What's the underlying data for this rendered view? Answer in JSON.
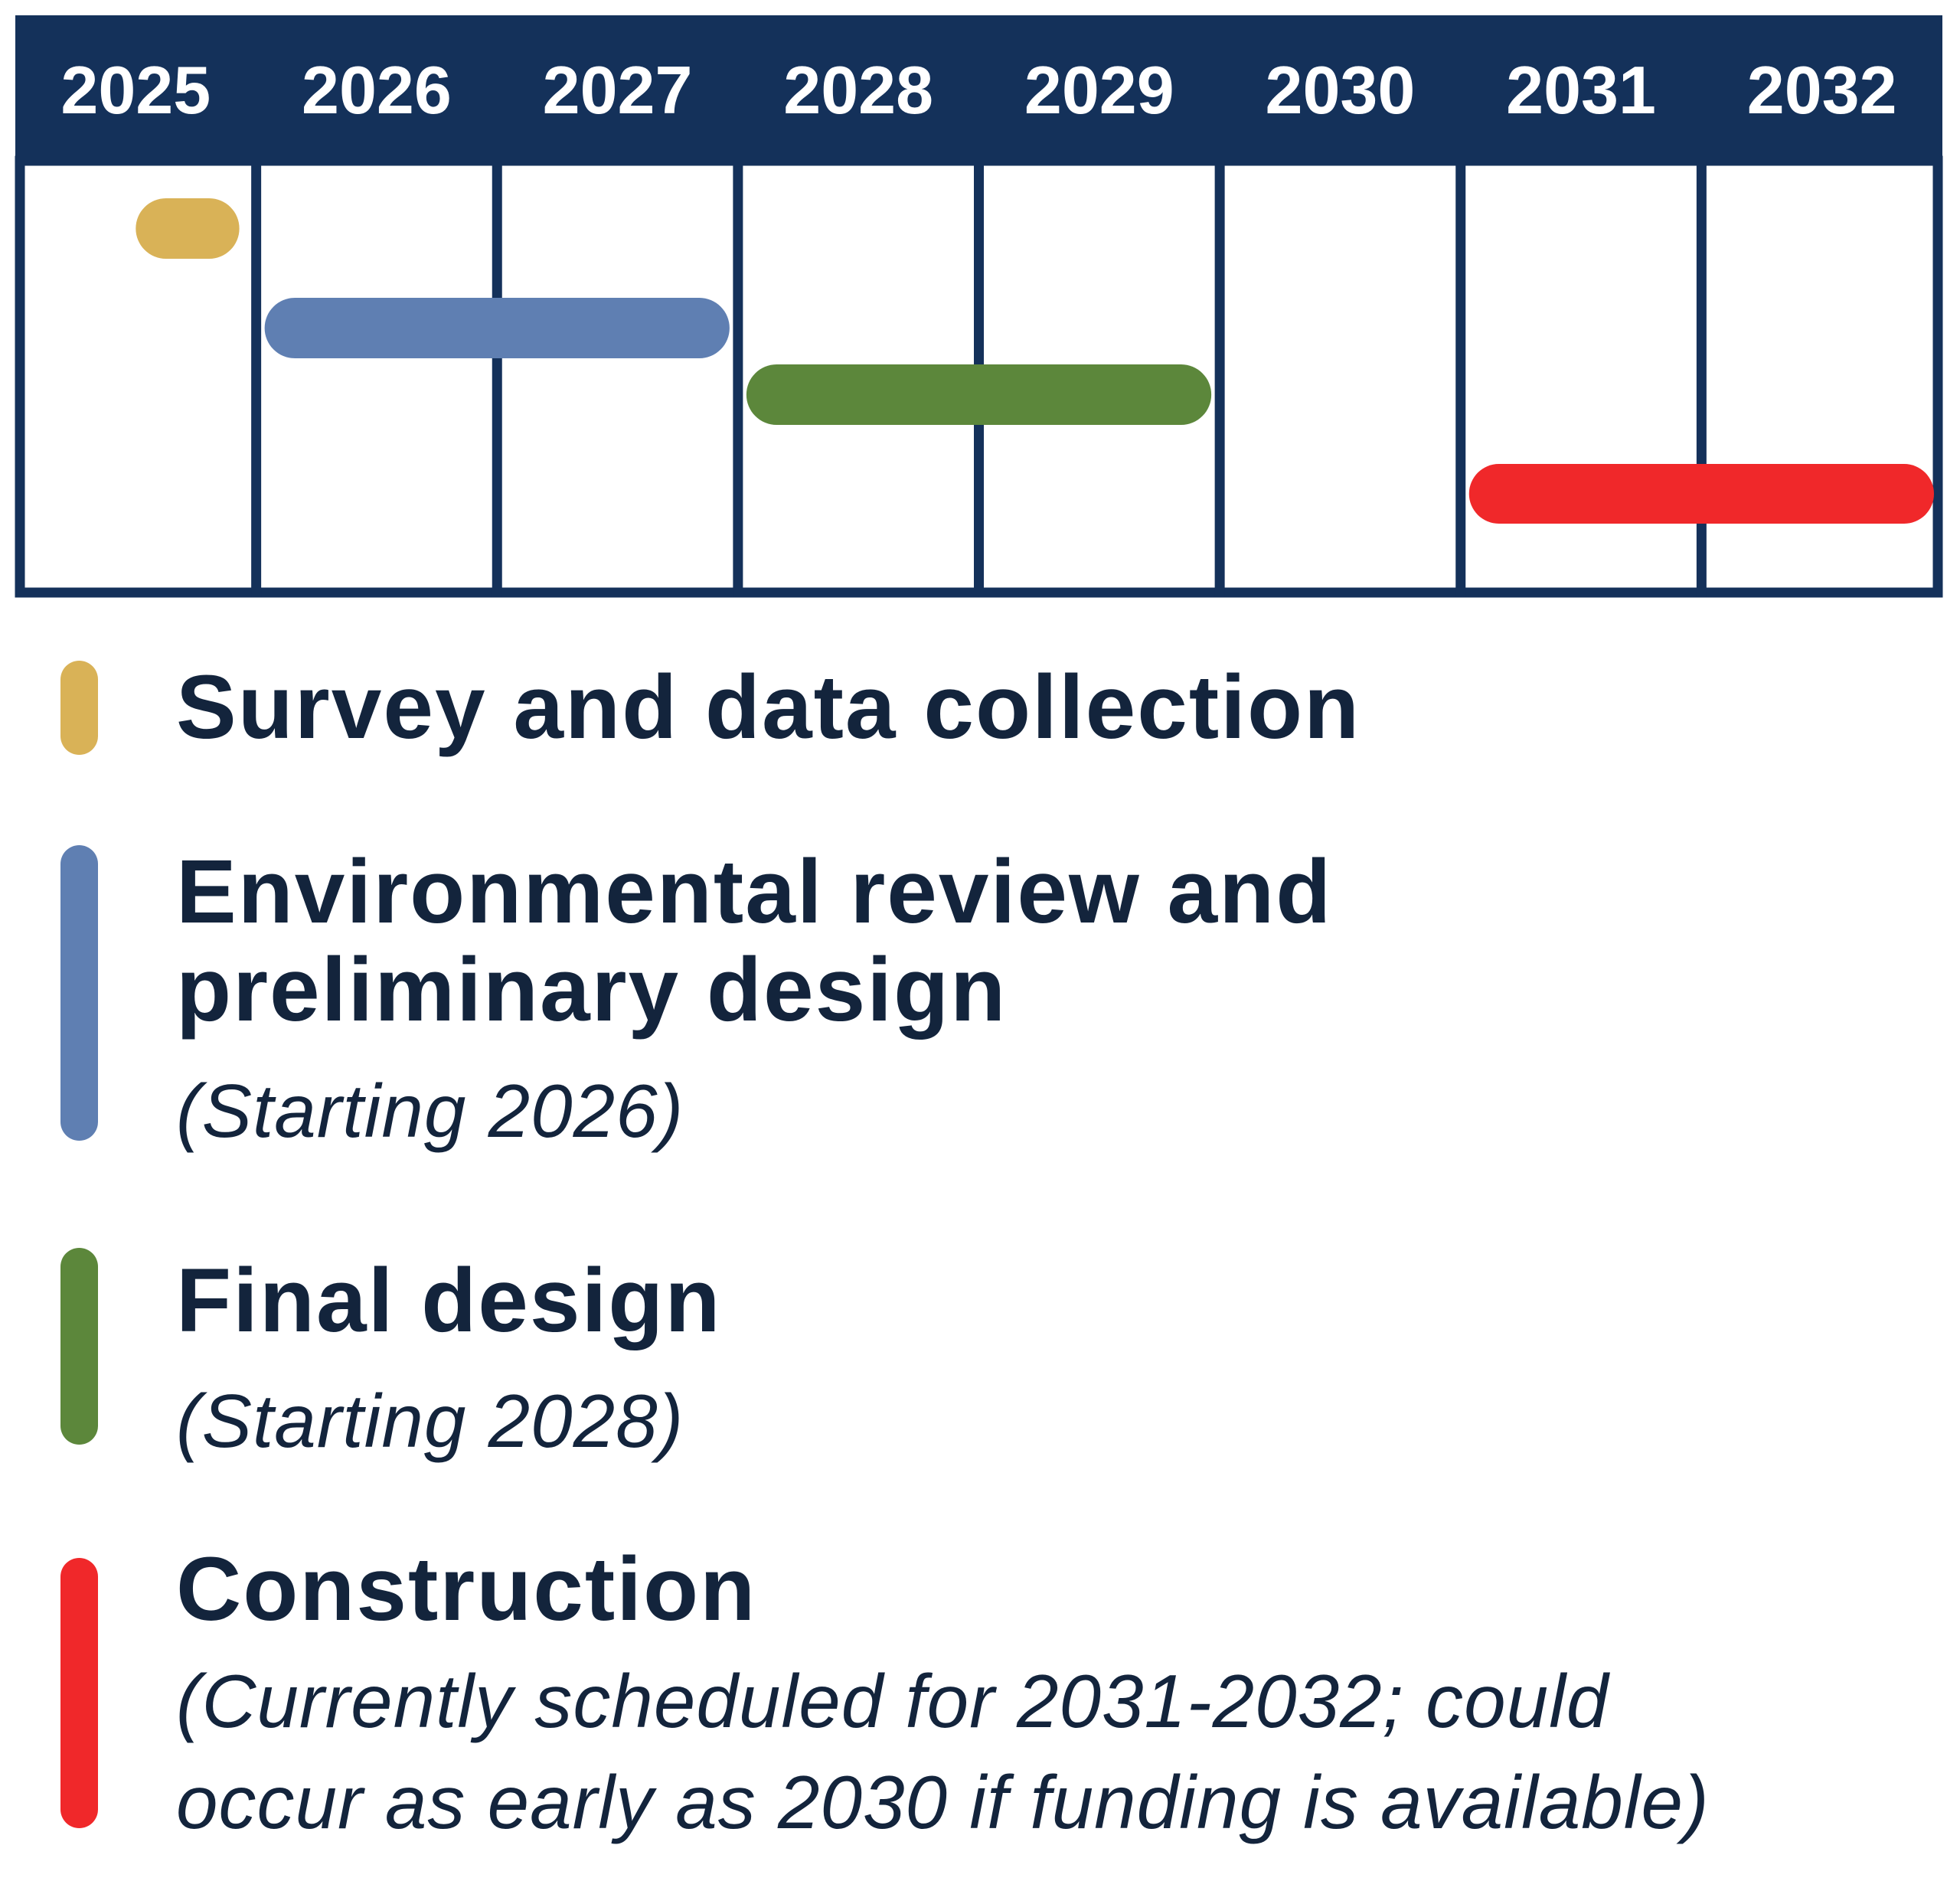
{
  "chart_data": {
    "type": "gantt",
    "categories": [
      "2025",
      "2026",
      "2027",
      "2028",
      "2029",
      "2030",
      "2031",
      "2032"
    ],
    "xlim": [
      2025,
      2033
    ],
    "grid": true,
    "legend_placement": "bottom",
    "tasks": [
      {
        "name": "Survey and data collection",
        "note": "",
        "start": 2025.5,
        "end": 2025.93,
        "color": "#d9b257"
      },
      {
        "name": "Environmental review and preliminary design",
        "note": "(Starting 2026)",
        "start": 2026.0,
        "end": 2028.0,
        "color": "#5f7fb2"
      },
      {
        "name": "Final design",
        "note": "(Starting 2028)",
        "start": 2028.0,
        "end": 2030.0,
        "color": "#5c873b"
      },
      {
        "name": "Construction",
        "note": "(Currently scheduled for 2031-2032; could occur as early as 2030 if funding is available)",
        "note_lines": [
          "(Currently scheduled for 2031-2032; could",
          "occur as early as 2030 if funding is available)"
        ],
        "start": 2031.0,
        "end": 2033.0,
        "color": "#f0282a"
      }
    ]
  },
  "legend": {
    "survey": {
      "title": "Survey and data collection"
    },
    "env": {
      "title_lines": [
        "Environmental review and",
        "preliminary design"
      ],
      "note": "(Starting 2026)"
    },
    "final": {
      "title": "Final design",
      "note": "(Starting 2028)"
    },
    "construction": {
      "title": "Construction",
      "note_lines": [
        "(Currently scheduled for 2031-2032; could",
        "occur as early as 2030 if funding is available)"
      ]
    }
  },
  "colors": {
    "header": "#14315a",
    "grid": "#14315a",
    "text": "#13243c"
  }
}
